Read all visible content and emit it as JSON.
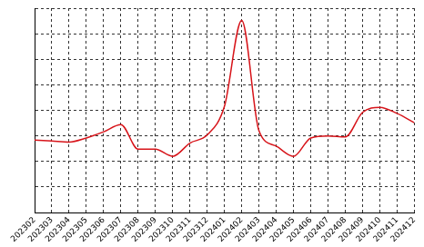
{
  "chart_data": {
    "type": "line",
    "categories": [
      "202302",
      "202303",
      "202304",
      "202305",
      "202306",
      "202307",
      "202308",
      "202309",
      "202310",
      "202311",
      "202312",
      "202401",
      "202402",
      "202403",
      "202404",
      "202405",
      "202406",
      "202407",
      "202408",
      "202409",
      "202410",
      "202411",
      "202412"
    ],
    "values": [
      2.84,
      2.8,
      2.76,
      2.92,
      3.16,
      3.44,
      2.48,
      2.48,
      2.2,
      2.72,
      3.04,
      4.16,
      7.52,
      3.2,
      2.6,
      2.2,
      2.92,
      3.0,
      2.96,
      3.92,
      4.12,
      3.88,
      3.52
    ],
    "color": "#d7141a",
    "ylim": [
      0,
      8
    ],
    "yticks": [
      0,
      1,
      2,
      3,
      4,
      5,
      6,
      7,
      8
    ],
    "grid": true,
    "tick_labels": "x"
  }
}
